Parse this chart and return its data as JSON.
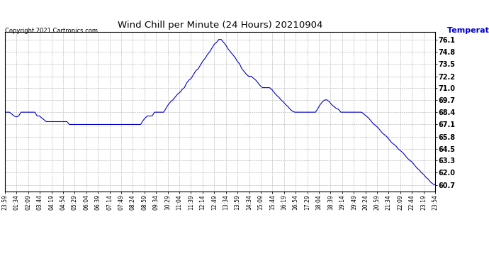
{
  "title": "Wind Chill per Minute (24 Hours) 20210904",
  "ylabel": "Temperature  (°F)",
  "copyright_text": "Copyright 2021 Cartronics.com",
  "line_color": "#0000cc",
  "background_color": "#ffffff",
  "grid_color": "#999999",
  "ylabel_color": "#0000cc",
  "ylim": [
    60.0,
    76.9
  ],
  "yticks": [
    60.7,
    62.0,
    63.3,
    64.5,
    65.8,
    67.1,
    68.4,
    69.7,
    71.0,
    72.2,
    73.5,
    74.8,
    76.1
  ],
  "x_labels": [
    "23:59",
    "01:34",
    "02:09",
    "03:44",
    "04:19",
    "04:54",
    "05:29",
    "06:04",
    "06:39",
    "07:14",
    "07:49",
    "08:24",
    "08:59",
    "09:34",
    "10:29",
    "11:04",
    "11:39",
    "12:14",
    "12:49",
    "13:34",
    "13:59",
    "14:34",
    "15:09",
    "15:44",
    "16:19",
    "16:54",
    "17:29",
    "18:04",
    "18:39",
    "19:14",
    "19:49",
    "20:24",
    "20:59",
    "21:34",
    "22:09",
    "22:44",
    "23:19",
    "23:54"
  ],
  "data_y": [
    68.4,
    68.4,
    68.4,
    68.2,
    68.0,
    67.9,
    68.0,
    68.4,
    68.4,
    68.4,
    68.4,
    68.4,
    68.4,
    68.4,
    68.0,
    68.0,
    67.8,
    67.6,
    67.4,
    67.4,
    67.4,
    67.4,
    67.4,
    67.4,
    67.4,
    67.4,
    67.4,
    67.4,
    67.1,
    67.1,
    67.1,
    67.1,
    67.1,
    67.1,
    67.1,
    67.1,
    67.1,
    67.1,
    67.1,
    67.1,
    67.1,
    67.1,
    67.1,
    67.1,
    67.1,
    67.1,
    67.1,
    67.1,
    67.1,
    67.1,
    67.1,
    67.1,
    67.1,
    67.1,
    67.1,
    67.1,
    67.1,
    67.1,
    67.1,
    67.1,
    67.5,
    67.8,
    68.0,
    68.0,
    68.0,
    68.4,
    68.4,
    68.4,
    68.4,
    68.4,
    68.8,
    69.2,
    69.5,
    69.7,
    70.0,
    70.3,
    70.5,
    70.8,
    71.0,
    71.5,
    71.8,
    72.0,
    72.4,
    72.8,
    73.0,
    73.4,
    73.8,
    74.1,
    74.5,
    74.8,
    75.2,
    75.6,
    75.8,
    76.1,
    76.1,
    75.8,
    75.5,
    75.1,
    74.8,
    74.5,
    74.2,
    73.8,
    73.5,
    73.0,
    72.7,
    72.4,
    72.2,
    72.2,
    72.0,
    71.8,
    71.5,
    71.2,
    71.0,
    71.0,
    71.0,
    71.0,
    70.8,
    70.5,
    70.2,
    70.0,
    69.7,
    69.5,
    69.2,
    69.0,
    68.7,
    68.5,
    68.4,
    68.4,
    68.4,
    68.4,
    68.4,
    68.4,
    68.4,
    68.4,
    68.4,
    68.4,
    68.8,
    69.2,
    69.5,
    69.7,
    69.7,
    69.5,
    69.2,
    69.0,
    68.8,
    68.7,
    68.4,
    68.4,
    68.4,
    68.4,
    68.4,
    68.4,
    68.4,
    68.4,
    68.4,
    68.4,
    68.2,
    68.0,
    67.8,
    67.5,
    67.2,
    67.0,
    66.8,
    66.5,
    66.2,
    66.0,
    65.8,
    65.5,
    65.2,
    65.0,
    64.8,
    64.5,
    64.3,
    64.1,
    63.8,
    63.5,
    63.3,
    63.1,
    62.8,
    62.5,
    62.3,
    62.0,
    61.8,
    61.5,
    61.3,
    61.0,
    60.8,
    60.7
  ]
}
